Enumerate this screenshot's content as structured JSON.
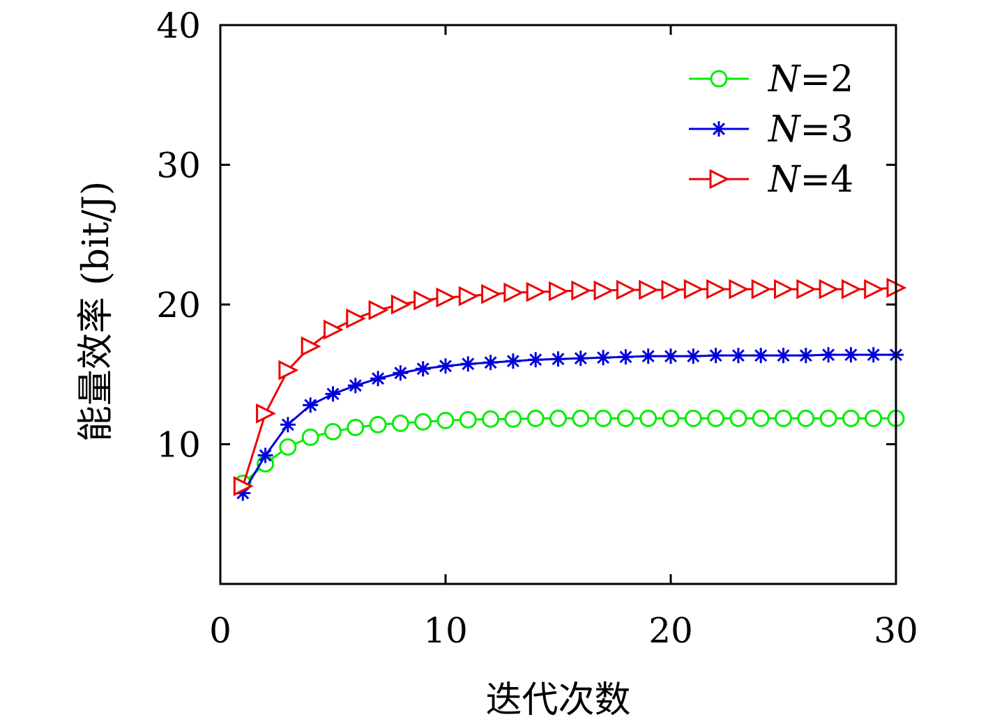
{
  "chart_data": {
    "type": "line",
    "title": "",
    "xlabel": "迭代次数",
    "ylabel": "能量效率 (bit/J)",
    "xlim": [
      0,
      30
    ],
    "ylim": [
      0,
      40
    ],
    "xticks": [
      0,
      10,
      20,
      30
    ],
    "yticks": [
      10,
      20,
      30,
      40
    ],
    "grid": false,
    "legend_position": "top-right",
    "x": [
      1,
      2,
      3,
      4,
      5,
      6,
      7,
      8,
      9,
      10,
      11,
      12,
      13,
      14,
      15,
      16,
      17,
      18,
      19,
      20,
      21,
      22,
      23,
      24,
      25,
      26,
      27,
      28,
      29,
      30
    ],
    "series": [
      {
        "name": "N=2",
        "legend_var": "N",
        "legend_value": "=2",
        "color": "#00ee00",
        "marker": "circle",
        "values": [
          7.2,
          8.6,
          9.8,
          10.5,
          10.9,
          11.2,
          11.4,
          11.5,
          11.6,
          11.7,
          11.75,
          11.8,
          11.8,
          11.85,
          11.85,
          11.85,
          11.85,
          11.85,
          11.85,
          11.85,
          11.85,
          11.85,
          11.85,
          11.85,
          11.85,
          11.85,
          11.85,
          11.85,
          11.85,
          11.85
        ]
      },
      {
        "name": "N=3",
        "legend_var": "N",
        "legend_value": "=3",
        "color": "#0000dd",
        "marker": "asterisk",
        "values": [
          6.5,
          9.2,
          11.4,
          12.8,
          13.6,
          14.2,
          14.7,
          15.1,
          15.4,
          15.6,
          15.75,
          15.85,
          15.95,
          16.05,
          16.1,
          16.15,
          16.2,
          16.25,
          16.3,
          16.3,
          16.3,
          16.35,
          16.35,
          16.35,
          16.35,
          16.35,
          16.4,
          16.4,
          16.4,
          16.4
        ]
      },
      {
        "name": "N=4",
        "legend_var": "N",
        "legend_value": "=4",
        "color": "#ee0000",
        "marker": "triangle-right",
        "values": [
          7.0,
          12.2,
          15.3,
          17.0,
          18.2,
          19.0,
          19.6,
          20.0,
          20.3,
          20.5,
          20.6,
          20.75,
          20.85,
          20.9,
          20.95,
          21.0,
          21.0,
          21.05,
          21.05,
          21.05,
          21.1,
          21.1,
          21.1,
          21.1,
          21.1,
          21.1,
          21.1,
          21.1,
          21.1,
          21.2
        ]
      }
    ]
  }
}
